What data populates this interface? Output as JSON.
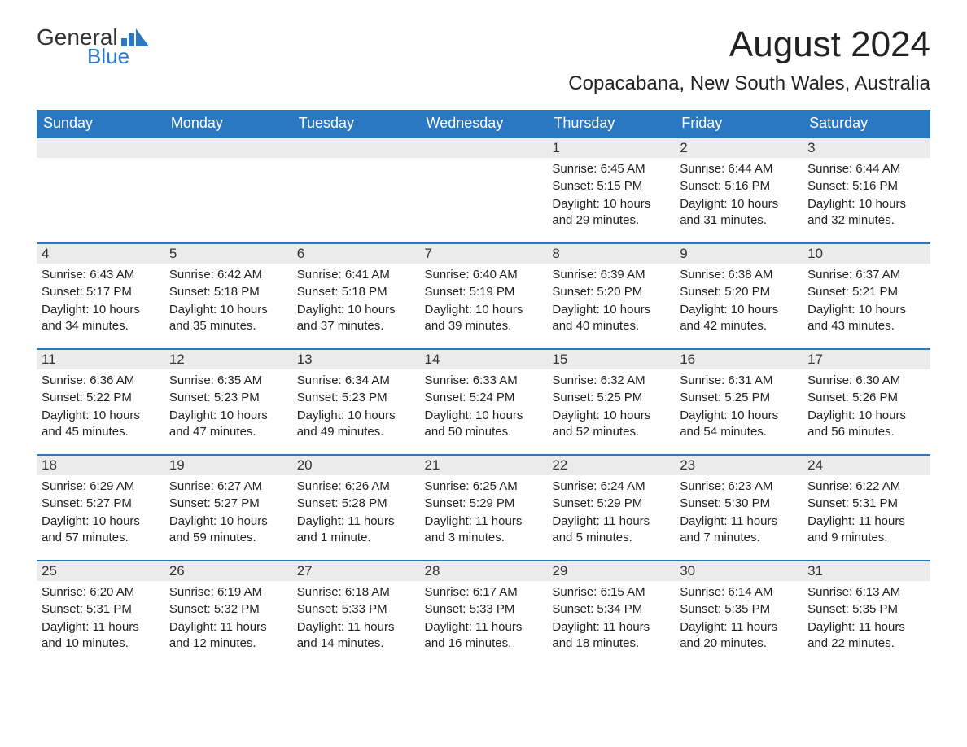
{
  "logo": {
    "word1": "General",
    "word2": "Blue"
  },
  "title": "August 2024",
  "location": "Copacabana, New South Wales, Australia",
  "colors": {
    "header_bg": "#2b78c2",
    "header_text": "#ffffff",
    "daynum_bg": "#ebebeb",
    "accent_border": "#2b78c2",
    "text": "#222222",
    "background": "#ffffff"
  },
  "weekdays": [
    "Sunday",
    "Monday",
    "Tuesday",
    "Wednesday",
    "Thursday",
    "Friday",
    "Saturday"
  ],
  "weeks": [
    [
      null,
      null,
      null,
      null,
      {
        "day": "1",
        "sunrise": "Sunrise: 6:45 AM",
        "sunset": "Sunset: 5:15 PM",
        "daylight": "Daylight: 10 hours and 29 minutes."
      },
      {
        "day": "2",
        "sunrise": "Sunrise: 6:44 AM",
        "sunset": "Sunset: 5:16 PM",
        "daylight": "Daylight: 10 hours and 31 minutes."
      },
      {
        "day": "3",
        "sunrise": "Sunrise: 6:44 AM",
        "sunset": "Sunset: 5:16 PM",
        "daylight": "Daylight: 10 hours and 32 minutes."
      }
    ],
    [
      {
        "day": "4",
        "sunrise": "Sunrise: 6:43 AM",
        "sunset": "Sunset: 5:17 PM",
        "daylight": "Daylight: 10 hours and 34 minutes."
      },
      {
        "day": "5",
        "sunrise": "Sunrise: 6:42 AM",
        "sunset": "Sunset: 5:18 PM",
        "daylight": "Daylight: 10 hours and 35 minutes."
      },
      {
        "day": "6",
        "sunrise": "Sunrise: 6:41 AM",
        "sunset": "Sunset: 5:18 PM",
        "daylight": "Daylight: 10 hours and 37 minutes."
      },
      {
        "day": "7",
        "sunrise": "Sunrise: 6:40 AM",
        "sunset": "Sunset: 5:19 PM",
        "daylight": "Daylight: 10 hours and 39 minutes."
      },
      {
        "day": "8",
        "sunrise": "Sunrise: 6:39 AM",
        "sunset": "Sunset: 5:20 PM",
        "daylight": "Daylight: 10 hours and 40 minutes."
      },
      {
        "day": "9",
        "sunrise": "Sunrise: 6:38 AM",
        "sunset": "Sunset: 5:20 PM",
        "daylight": "Daylight: 10 hours and 42 minutes."
      },
      {
        "day": "10",
        "sunrise": "Sunrise: 6:37 AM",
        "sunset": "Sunset: 5:21 PM",
        "daylight": "Daylight: 10 hours and 43 minutes."
      }
    ],
    [
      {
        "day": "11",
        "sunrise": "Sunrise: 6:36 AM",
        "sunset": "Sunset: 5:22 PM",
        "daylight": "Daylight: 10 hours and 45 minutes."
      },
      {
        "day": "12",
        "sunrise": "Sunrise: 6:35 AM",
        "sunset": "Sunset: 5:23 PM",
        "daylight": "Daylight: 10 hours and 47 minutes."
      },
      {
        "day": "13",
        "sunrise": "Sunrise: 6:34 AM",
        "sunset": "Sunset: 5:23 PM",
        "daylight": "Daylight: 10 hours and 49 minutes."
      },
      {
        "day": "14",
        "sunrise": "Sunrise: 6:33 AM",
        "sunset": "Sunset: 5:24 PM",
        "daylight": "Daylight: 10 hours and 50 minutes."
      },
      {
        "day": "15",
        "sunrise": "Sunrise: 6:32 AM",
        "sunset": "Sunset: 5:25 PM",
        "daylight": "Daylight: 10 hours and 52 minutes."
      },
      {
        "day": "16",
        "sunrise": "Sunrise: 6:31 AM",
        "sunset": "Sunset: 5:25 PM",
        "daylight": "Daylight: 10 hours and 54 minutes."
      },
      {
        "day": "17",
        "sunrise": "Sunrise: 6:30 AM",
        "sunset": "Sunset: 5:26 PM",
        "daylight": "Daylight: 10 hours and 56 minutes."
      }
    ],
    [
      {
        "day": "18",
        "sunrise": "Sunrise: 6:29 AM",
        "sunset": "Sunset: 5:27 PM",
        "daylight": "Daylight: 10 hours and 57 minutes."
      },
      {
        "day": "19",
        "sunrise": "Sunrise: 6:27 AM",
        "sunset": "Sunset: 5:27 PM",
        "daylight": "Daylight: 10 hours and 59 minutes."
      },
      {
        "day": "20",
        "sunrise": "Sunrise: 6:26 AM",
        "sunset": "Sunset: 5:28 PM",
        "daylight": "Daylight: 11 hours and 1 minute."
      },
      {
        "day": "21",
        "sunrise": "Sunrise: 6:25 AM",
        "sunset": "Sunset: 5:29 PM",
        "daylight": "Daylight: 11 hours and 3 minutes."
      },
      {
        "day": "22",
        "sunrise": "Sunrise: 6:24 AM",
        "sunset": "Sunset: 5:29 PM",
        "daylight": "Daylight: 11 hours and 5 minutes."
      },
      {
        "day": "23",
        "sunrise": "Sunrise: 6:23 AM",
        "sunset": "Sunset: 5:30 PM",
        "daylight": "Daylight: 11 hours and 7 minutes."
      },
      {
        "day": "24",
        "sunrise": "Sunrise: 6:22 AM",
        "sunset": "Sunset: 5:31 PM",
        "daylight": "Daylight: 11 hours and 9 minutes."
      }
    ],
    [
      {
        "day": "25",
        "sunrise": "Sunrise: 6:20 AM",
        "sunset": "Sunset: 5:31 PM",
        "daylight": "Daylight: 11 hours and 10 minutes."
      },
      {
        "day": "26",
        "sunrise": "Sunrise: 6:19 AM",
        "sunset": "Sunset: 5:32 PM",
        "daylight": "Daylight: 11 hours and 12 minutes."
      },
      {
        "day": "27",
        "sunrise": "Sunrise: 6:18 AM",
        "sunset": "Sunset: 5:33 PM",
        "daylight": "Daylight: 11 hours and 14 minutes."
      },
      {
        "day": "28",
        "sunrise": "Sunrise: 6:17 AM",
        "sunset": "Sunset: 5:33 PM",
        "daylight": "Daylight: 11 hours and 16 minutes."
      },
      {
        "day": "29",
        "sunrise": "Sunrise: 6:15 AM",
        "sunset": "Sunset: 5:34 PM",
        "daylight": "Daylight: 11 hours and 18 minutes."
      },
      {
        "day": "30",
        "sunrise": "Sunrise: 6:14 AM",
        "sunset": "Sunset: 5:35 PM",
        "daylight": "Daylight: 11 hours and 20 minutes."
      },
      {
        "day": "31",
        "sunrise": "Sunrise: 6:13 AM",
        "sunset": "Sunset: 5:35 PM",
        "daylight": "Daylight: 11 hours and 22 minutes."
      }
    ]
  ]
}
